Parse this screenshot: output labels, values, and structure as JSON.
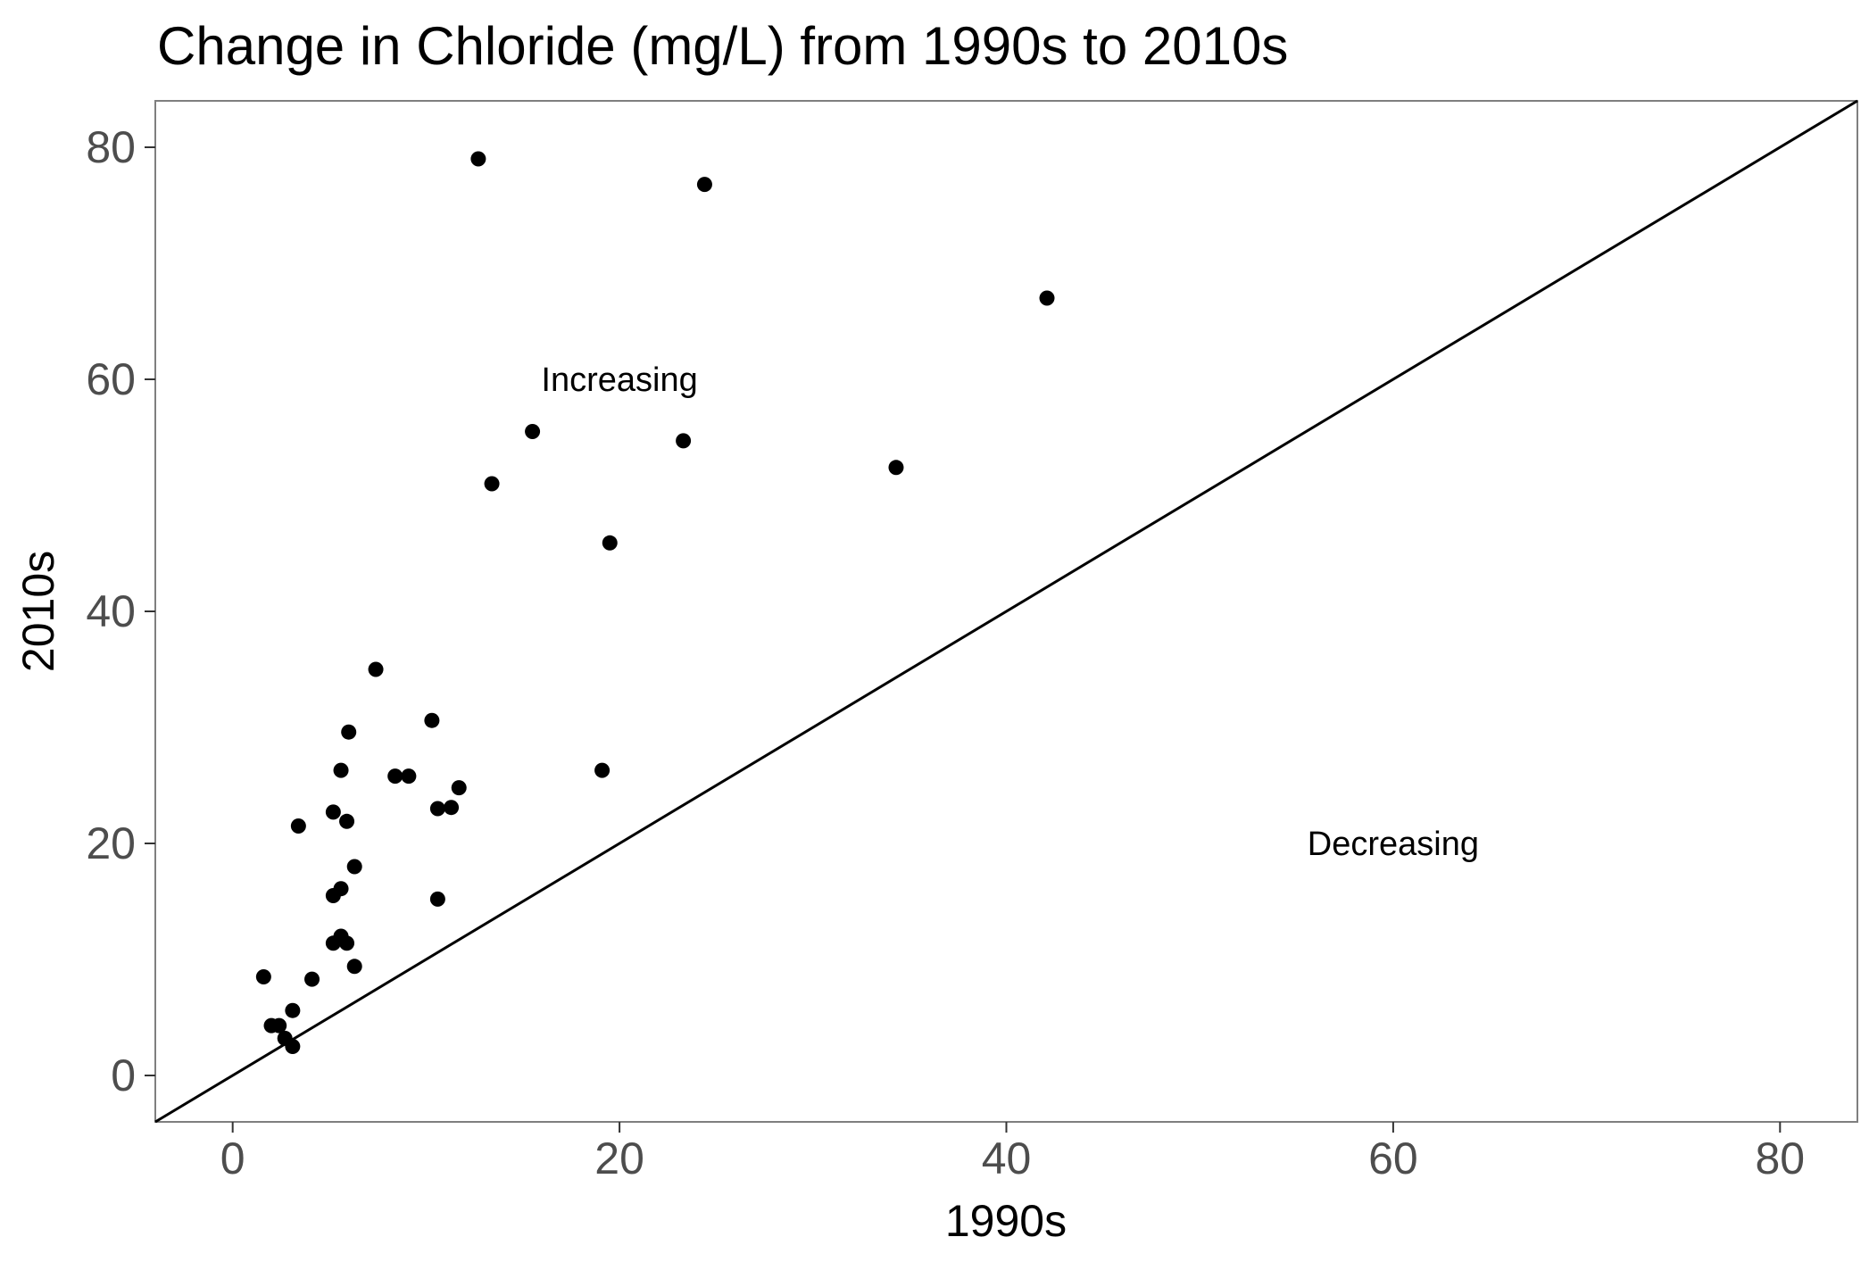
{
  "chart_data": {
    "type": "scatter",
    "title": "Change in Chloride (mg/L) from 1990s to 2010s",
    "xlabel": "1990s",
    "ylabel": "2010s",
    "xlim": [
      -4,
      84
    ],
    "ylim": [
      -4,
      84
    ],
    "xticks": [
      0,
      20,
      40,
      60,
      80
    ],
    "yticks": [
      0,
      20,
      40,
      60,
      80
    ],
    "grid": false,
    "reference_line": {
      "slope": 1,
      "intercept": 0
    },
    "annotations": [
      {
        "text": "Increasing",
        "x": 20,
        "y": 60
      },
      {
        "text": "Decreasing",
        "x": 60,
        "y": 20
      }
    ],
    "points": [
      {
        "x": 12.7,
        "y": 79.0
      },
      {
        "x": 24.4,
        "y": 76.8
      },
      {
        "x": 42.1,
        "y": 67.0
      },
      {
        "x": 15.5,
        "y": 55.5
      },
      {
        "x": 23.3,
        "y": 54.7
      },
      {
        "x": 34.3,
        "y": 52.4
      },
      {
        "x": 13.4,
        "y": 51.0
      },
      {
        "x": 19.5,
        "y": 45.9
      },
      {
        "x": 7.4,
        "y": 35.0
      },
      {
        "x": 10.3,
        "y": 30.6
      },
      {
        "x": 6.0,
        "y": 29.6
      },
      {
        "x": 5.6,
        "y": 26.3
      },
      {
        "x": 19.1,
        "y": 26.3
      },
      {
        "x": 8.4,
        "y": 25.8
      },
      {
        "x": 9.1,
        "y": 25.8
      },
      {
        "x": 11.7,
        "y": 24.8
      },
      {
        "x": 10.6,
        "y": 23.0
      },
      {
        "x": 11.3,
        "y": 23.1
      },
      {
        "x": 5.2,
        "y": 22.7
      },
      {
        "x": 5.9,
        "y": 21.9
      },
      {
        "x": 3.4,
        "y": 21.5
      },
      {
        "x": 6.3,
        "y": 18.0
      },
      {
        "x": 5.6,
        "y": 16.1
      },
      {
        "x": 5.2,
        "y": 15.5
      },
      {
        "x": 10.6,
        "y": 15.2
      },
      {
        "x": 5.6,
        "y": 12.0
      },
      {
        "x": 5.2,
        "y": 11.4
      },
      {
        "x": 5.9,
        "y": 11.4
      },
      {
        "x": 6.3,
        "y": 9.4
      },
      {
        "x": 1.6,
        "y": 8.5
      },
      {
        "x": 4.1,
        "y": 8.3
      },
      {
        "x": 3.1,
        "y": 5.6
      },
      {
        "x": 2.0,
        "y": 4.3
      },
      {
        "x": 2.4,
        "y": 4.3
      },
      {
        "x": 2.7,
        "y": 3.2
      },
      {
        "x": 3.1,
        "y": 2.5
      }
    ]
  }
}
